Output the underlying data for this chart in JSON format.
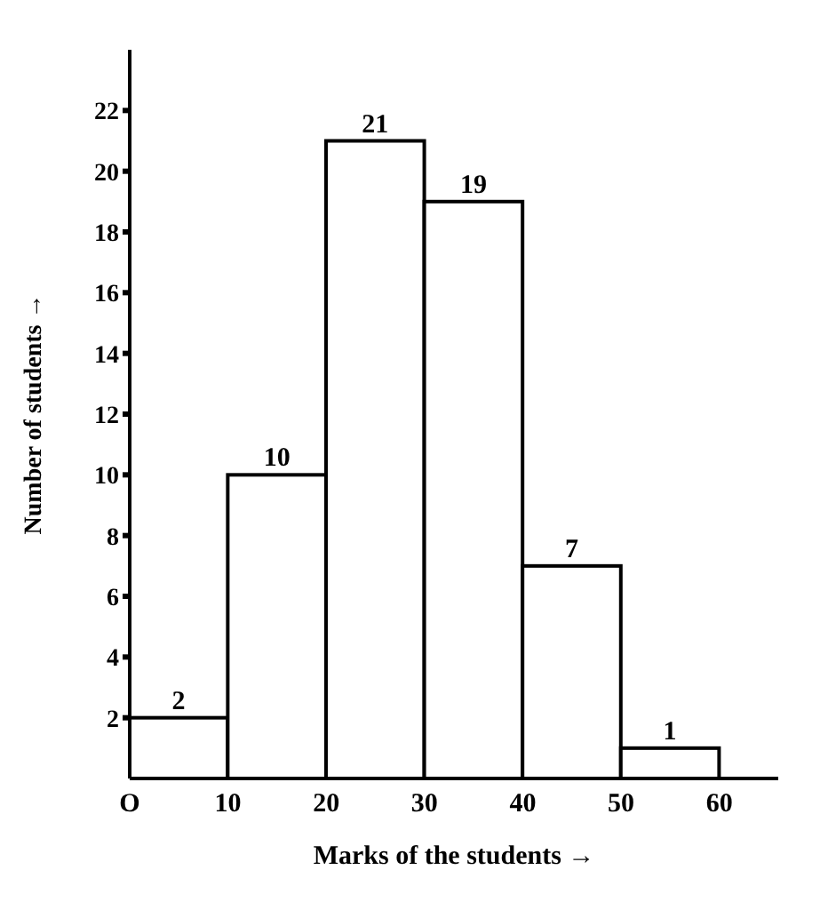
{
  "chart_data": {
    "type": "histogram",
    "xlabel": "Marks of the students →",
    "ylabel": "Number of students →",
    "bins": [
      0,
      10,
      20,
      30,
      40,
      50,
      60
    ],
    "values": [
      2,
      10,
      21,
      19,
      7,
      1
    ],
    "color": "#ffffff",
    "xlim": [
      0,
      66
    ],
    "xticks": [
      {
        "value": 0,
        "label": "O"
      },
      10,
      20,
      30,
      40,
      50,
      60
    ],
    "ylim": [
      0,
      24
    ],
    "yticks": [
      2,
      4,
      6,
      8,
      10,
      12,
      14,
      16,
      18,
      20,
      22
    ],
    "data_labels": true,
    "grid": false,
    "legend": false
  }
}
